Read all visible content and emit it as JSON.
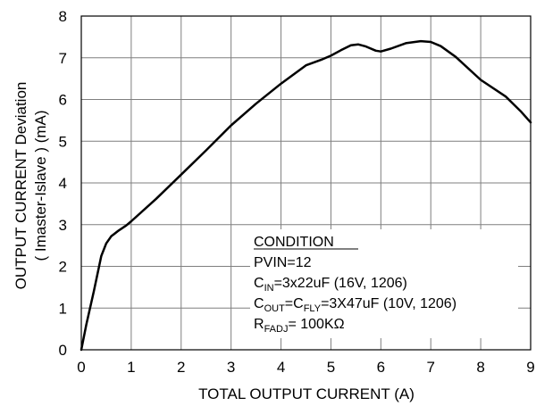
{
  "chart_data": {
    "type": "line",
    "xlabel": "TOTAL OUTPUT CURRENT (A)",
    "ylabel_lines": [
      "OUTPUT CURRENT Deviation",
      "( Imaster-Islave )   (mA)"
    ],
    "xlim": [
      0,
      9
    ],
    "ylim": [
      0,
      8
    ],
    "x_ticks": [
      "0",
      "1",
      "2",
      "3",
      "4",
      "5",
      "6",
      "7",
      "8",
      "9"
    ],
    "y_ticks": [
      "0",
      "1",
      "2",
      "3",
      "4",
      "5",
      "6",
      "7",
      "8"
    ],
    "grid": true,
    "colors": {
      "line": "#000000",
      "grid": "#7f7f7f",
      "axes": "#000000"
    },
    "series": [
      {
        "x": [
          0,
          0.1,
          0.25,
          0.4,
          0.5,
          0.6,
          0.75,
          0.9,
          1.0,
          1.5,
          2.0,
          2.5,
          3.0,
          3.5,
          4.0,
          4.5,
          4.8,
          5.0,
          5.2,
          5.4,
          5.55,
          5.7,
          5.9,
          6.0,
          6.2,
          6.5,
          6.8,
          7.0,
          7.2,
          7.5,
          8.0,
          8.5,
          8.8,
          9.0
        ],
        "y": [
          0,
          0.6,
          1.4,
          2.25,
          2.55,
          2.72,
          2.86,
          2.98,
          3.08,
          3.62,
          4.2,
          4.78,
          5.38,
          5.9,
          6.38,
          6.82,
          6.95,
          7.05,
          7.18,
          7.3,
          7.32,
          7.27,
          7.17,
          7.15,
          7.22,
          7.35,
          7.4,
          7.38,
          7.28,
          7.02,
          6.47,
          6.07,
          5.72,
          5.45
        ]
      }
    ],
    "legend": {
      "title": "CONDITION",
      "lines": [
        {
          "parts": [
            {
              "t": "PVIN=12"
            }
          ]
        },
        {
          "parts": [
            {
              "t": "C"
            },
            {
              "t": "IN",
              "sub": true
            },
            {
              "t": "=3x22uF (16V, 1206)"
            }
          ]
        },
        {
          "parts": [
            {
              "t": "C"
            },
            {
              "t": "OUT",
              "sub": true
            },
            {
              "t": "=C"
            },
            {
              "t": "FLY",
              "sub": true
            },
            {
              "t": "=3X47uF (10V, 1206)"
            }
          ]
        },
        {
          "parts": [
            {
              "t": "R"
            },
            {
              "t": "FADJ",
              "sub": true
            },
            {
              "t": "= 100KΩ"
            }
          ]
        }
      ]
    }
  }
}
